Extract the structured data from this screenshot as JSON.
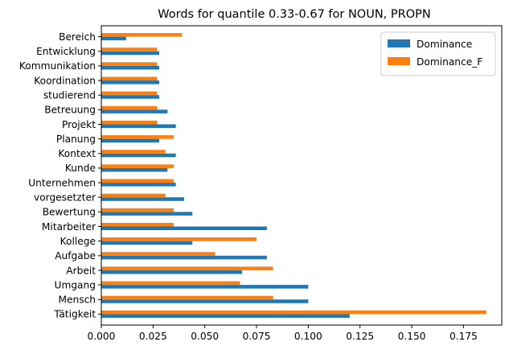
{
  "chart_data": {
    "type": "bar",
    "orientation": "horizontal",
    "title": "Words for quantile 0.33-0.67 for NOUN, PROPN",
    "xlabel": "",
    "ylabel": "",
    "xlim": [
      0,
      0.1935
    ],
    "xticks": [
      0.0,
      0.025,
      0.05,
      0.075,
      0.1,
      0.125,
      0.15,
      0.175
    ],
    "xtick_labels": [
      "0.000",
      "0.025",
      "0.050",
      "0.075",
      "0.100",
      "0.125",
      "0.150",
      "0.175"
    ],
    "categories": [
      "Tätigkeit",
      "Mensch",
      "Umgang",
      "Arbeit",
      "Aufgabe",
      "Kollege",
      "Mitarbeiter",
      "Bewertung",
      "vorgesetzter",
      "Unternehmen",
      "Kunde",
      "Kontext",
      "Planung",
      "Projekt",
      "Betreuung",
      "studierend",
      "Koordination",
      "Kommunikation",
      "Entwicklung",
      "Bereich"
    ],
    "series": [
      {
        "name": "Dominance",
        "color": "#1f77b4",
        "values": [
          0.12,
          0.1,
          0.1,
          0.068,
          0.08,
          0.044,
          0.08,
          0.044,
          0.04,
          0.036,
          0.032,
          0.036,
          0.028,
          0.036,
          0.032,
          0.028,
          0.028,
          0.028,
          0.028,
          0.012
        ]
      },
      {
        "name": "Dominance_F",
        "color": "#ff7f0e",
        "values": [
          0.186,
          0.083,
          0.067,
          0.083,
          0.055,
          0.075,
          0.035,
          0.035,
          0.031,
          0.035,
          0.035,
          0.031,
          0.035,
          0.027,
          0.027,
          0.027,
          0.027,
          0.027,
          0.027,
          0.039
        ]
      }
    ],
    "legend_position": "top-right",
    "grid": false
  }
}
